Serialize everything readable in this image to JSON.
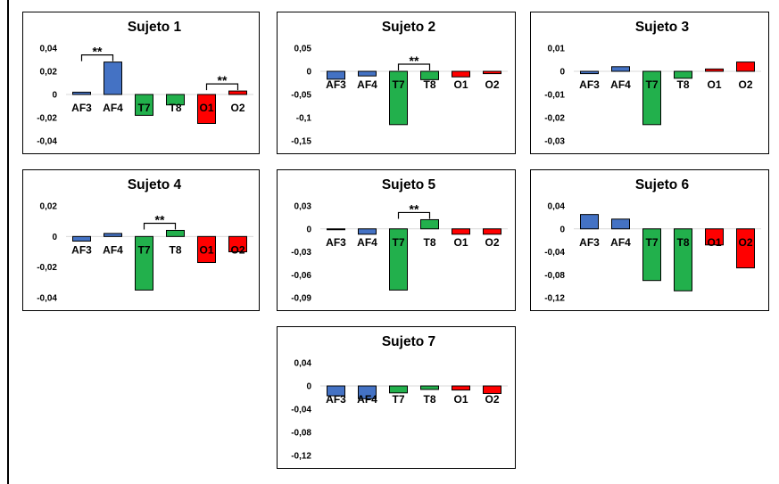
{
  "colors": {
    "AF3": "#4472c4",
    "AF4": "#4472c4",
    "T7": "#22b04c",
    "T8": "#22b04c",
    "O1": "#ff0000",
    "O2": "#ff0000"
  },
  "chart_data": [
    {
      "type": "bar",
      "title": "Sujeto 1",
      "categories": [
        "AF3",
        "AF4",
        "T7",
        "T8",
        "O1",
        "O2"
      ],
      "values": [
        0.002,
        0.028,
        -0.018,
        -0.009,
        -0.025,
        0.003
      ],
      "ylim": [
        -0.04,
        0.04
      ],
      "ticks": [
        "0,04",
        "0,02",
        "0",
        "-0,02",
        "-0,04"
      ],
      "tick_values": [
        0.04,
        0.02,
        0,
        -0.02,
        -0.04
      ],
      "significance": [
        {
          "from": "AF3",
          "to": "AF4",
          "label": "**"
        },
        {
          "from": "O1",
          "to": "O2",
          "label": "**"
        }
      ]
    },
    {
      "type": "bar",
      "title": "Sujeto 2",
      "categories": [
        "AF3",
        "AF4",
        "T7",
        "T8",
        "O1",
        "O2"
      ],
      "values": [
        -0.017,
        -0.01,
        -0.115,
        -0.018,
        -0.012,
        -0.005
      ],
      "ylim": [
        -0.15,
        0.05
      ],
      "ticks": [
        "0,05",
        "0",
        "-0,05",
        "-0,1",
        "-0,15"
      ],
      "tick_values": [
        0.05,
        0,
        -0.05,
        -0.1,
        -0.15
      ],
      "significance": [
        {
          "from": "T7",
          "to": "T8",
          "label": "**"
        }
      ]
    },
    {
      "type": "bar",
      "title": "Sujeto 3",
      "categories": [
        "AF3",
        "AF4",
        "T7",
        "T8",
        "O1",
        "O2"
      ],
      "values": [
        -0.001,
        0.002,
        -0.023,
        -0.003,
        0.001,
        0.004
      ],
      "ylim": [
        -0.03,
        0.01
      ],
      "ticks": [
        "0,01",
        "0",
        "-0,01",
        "-0,02",
        "-0,03"
      ],
      "tick_values": [
        0.01,
        0,
        -0.01,
        -0.02,
        -0.03
      ],
      "significance": []
    },
    {
      "type": "bar",
      "title": "Sujeto 4",
      "categories": [
        "AF3",
        "AF4",
        "T7",
        "T8",
        "O1",
        "O2"
      ],
      "values": [
        -0.003,
        0.002,
        -0.035,
        0.004,
        -0.017,
        -0.01
      ],
      "ylim": [
        -0.04,
        0.02
      ],
      "ticks": [
        "0,02",
        "0",
        "-0,02",
        "-0,04"
      ],
      "tick_values": [
        0.02,
        0,
        -0.02,
        -0.04
      ],
      "significance": [
        {
          "from": "T7",
          "to": "T8",
          "label": "**"
        }
      ]
    },
    {
      "type": "bar",
      "title": "Sujeto 5",
      "categories": [
        "AF3",
        "AF4",
        "T7",
        "T8",
        "O1",
        "O2"
      ],
      "values": [
        -0.001,
        -0.007,
        -0.08,
        0.012,
        -0.007,
        -0.007
      ],
      "ylim": [
        -0.09,
        0.03
      ],
      "ticks": [
        "0,03",
        "0",
        "-0,03",
        "-0,06",
        "-0,09"
      ],
      "tick_values": [
        0.03,
        0,
        -0.03,
        -0.06,
        -0.09
      ],
      "significance": [
        {
          "from": "T7",
          "to": "T8",
          "label": "**"
        }
      ]
    },
    {
      "type": "bar",
      "title": "Sujeto 6",
      "categories": [
        "AF3",
        "AF4",
        "T7",
        "T8",
        "O1",
        "O2"
      ],
      "values": [
        0.025,
        0.017,
        -0.09,
        -0.108,
        -0.028,
        -0.068
      ],
      "ylim": [
        -0.12,
        0.04
      ],
      "ticks": [
        "0,04",
        "0",
        "-0,04",
        "-0,08",
        "-0,12"
      ],
      "tick_values": [
        0.04,
        0,
        -0.04,
        -0.08,
        -0.12
      ],
      "significance": []
    },
    {
      "type": "bar",
      "title": "Sujeto 7",
      "categories": [
        "AF3",
        "AF4",
        "T7",
        "T8",
        "O1",
        "O2"
      ],
      "values": [
        -0.017,
        -0.022,
        -0.012,
        -0.006,
        -0.007,
        -0.013
      ],
      "ylim": [
        -0.12,
        0.04
      ],
      "ticks": [
        "0,04",
        "0",
        "-0,04",
        "-0,08",
        "-0,12"
      ],
      "tick_values": [
        0.04,
        0,
        -0.04,
        -0.08,
        -0.12
      ],
      "significance": []
    }
  ]
}
